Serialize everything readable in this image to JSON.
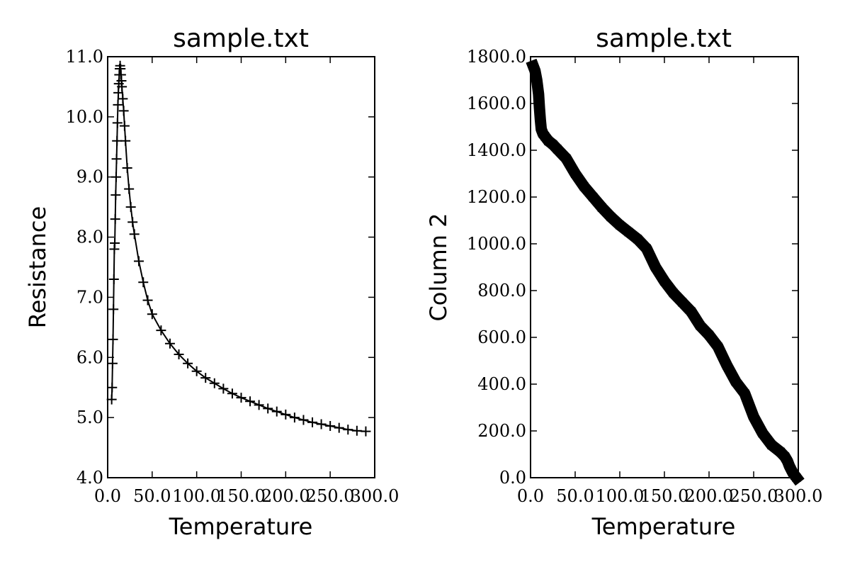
{
  "chart_data": [
    {
      "type": "scatter",
      "title": "sample.txt",
      "xlabel": "Temperature",
      "ylabel": "Resistance",
      "xlim": [
        0,
        300
      ],
      "ylim": [
        4,
        11
      ],
      "xticks": [
        "0.0",
        "50.0",
        "100.0",
        "150.0",
        "200.0",
        "250.0",
        "300.0"
      ],
      "yticks": [
        "4.0",
        "5.0",
        "6.0",
        "7.0",
        "8.0",
        "9.0",
        "10.0",
        "11.0"
      ],
      "grid": false,
      "marker": "plus",
      "color": "#000000",
      "series": [
        {
          "x": [
            4.5,
            5,
            5.5,
            6,
            6.5,
            7,
            7.5,
            8,
            8.5,
            9,
            9.5,
            10,
            10.5,
            11,
            11.5,
            12,
            12.5,
            13,
            13.5,
            14,
            14.5,
            15,
            15.5,
            16,
            17,
            18,
            19,
            20,
            22,
            24,
            26,
            28,
            30,
            35,
            40,
            45,
            50,
            60,
            70,
            80,
            90,
            100,
            110,
            120,
            130,
            140,
            150,
            160,
            170,
            180,
            190,
            200,
            210,
            220,
            230,
            240,
            250,
            260,
            270,
            280,
            290
          ],
          "y": [
            5.3,
            5.5,
            5.9,
            6.3,
            6.8,
            7.3,
            7.8,
            7.9,
            8.3,
            8.7,
            9.0,
            9.3,
            9.6,
            9.9,
            10.2,
            10.4,
            10.55,
            10.7,
            10.8,
            10.85,
            10.8,
            10.7,
            10.6,
            10.5,
            10.3,
            10.1,
            9.85,
            9.6,
            9.15,
            8.8,
            8.5,
            8.25,
            8.05,
            7.6,
            7.25,
            6.95,
            6.72,
            6.45,
            6.23,
            6.05,
            5.9,
            5.77,
            5.66,
            5.57,
            5.48,
            5.4,
            5.33,
            5.27,
            5.21,
            5.15,
            5.1,
            5.05,
            5.0,
            4.96,
            4.92,
            4.89,
            4.86,
            4.83,
            4.8,
            4.78,
            4.77
          ]
        }
      ]
    },
    {
      "type": "scatter",
      "title": "sample.txt",
      "xlabel": "Temperature",
      "ylabel": "Column 2",
      "xlim": [
        0,
        300
      ],
      "ylim": [
        0,
        1800
      ],
      "xticks": [
        "0.0",
        "50.0",
        "100.0",
        "150.0",
        "200.0",
        "250.0",
        "300.0"
      ],
      "yticks": [
        "0.0",
        "200.0",
        "400.0",
        "600.0",
        "800.0",
        "1000.0",
        "1200.0",
        "1400.0",
        "1600.0",
        "1800.0"
      ],
      "grid": false,
      "marker": "square",
      "color": "#000000",
      "series": [
        {
          "x": [
            3,
            5,
            7,
            9,
            10,
            11,
            12,
            14,
            16,
            20,
            25,
            30,
            40,
            50,
            60,
            70,
            80,
            90,
            100,
            110,
            120,
            130,
            135,
            140,
            150,
            160,
            170,
            180,
            185,
            190,
            200,
            210,
            215,
            220,
            230,
            240,
            245,
            250,
            260,
            270,
            280,
            285,
            288,
            290,
            292,
            294,
            296,
            298
          ],
          "y": [
            1760,
            1740,
            1700,
            1640,
            1580,
            1530,
            1490,
            1470,
            1460,
            1440,
            1425,
            1405,
            1365,
            1300,
            1245,
            1200,
            1155,
            1115,
            1080,
            1050,
            1020,
            980,
            940,
            900,
            840,
            790,
            750,
            710,
            680,
            650,
            610,
            560,
            520,
            480,
            410,
            360,
            310,
            260,
            190,
            140,
            110,
            90,
            70,
            50,
            35,
            20,
            10,
            0
          ]
        }
      ]
    }
  ]
}
